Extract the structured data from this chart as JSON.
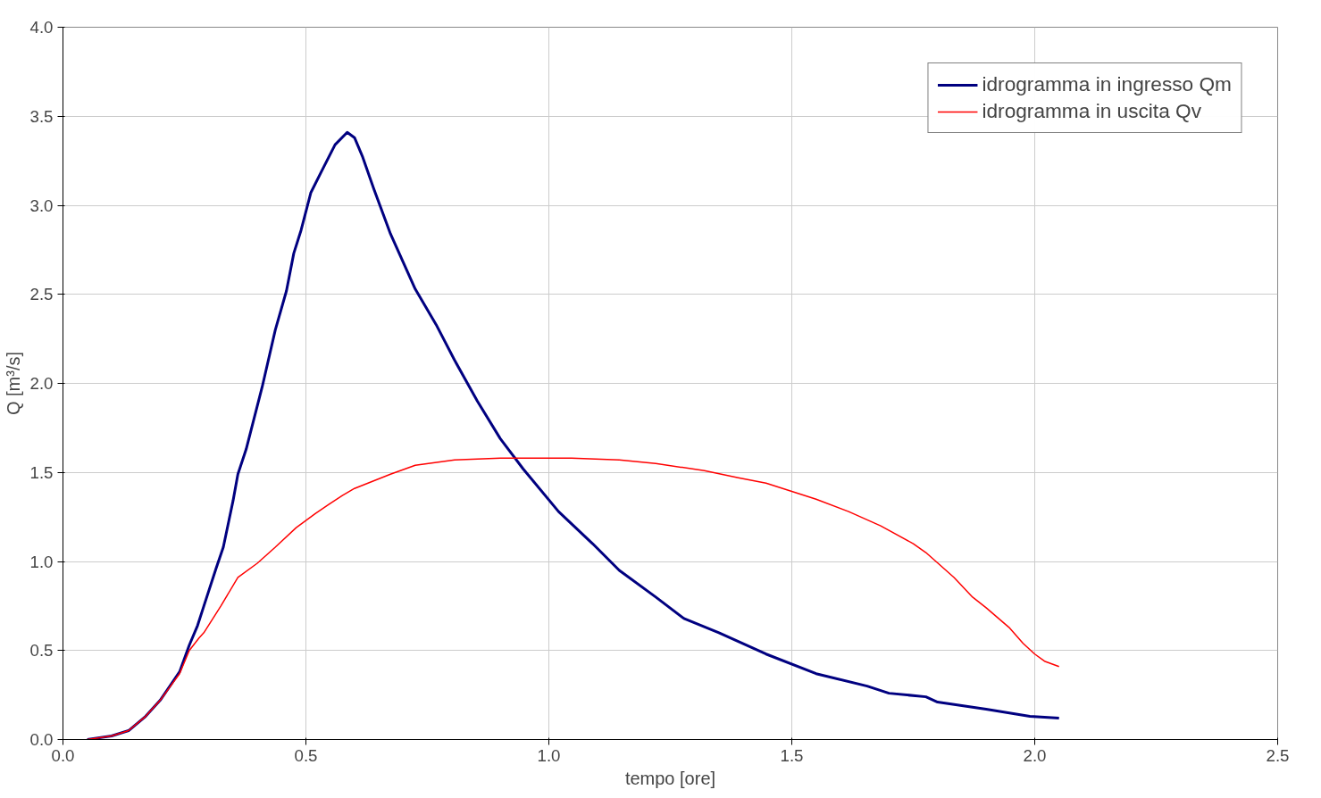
{
  "chart_data": {
    "type": "line",
    "xlabel": "tempo [ore]",
    "ylabel": "Q [m³/s]",
    "xlim": [
      0,
      2.5
    ],
    "ylim": [
      0,
      4
    ],
    "xticks": [
      {
        "value": 0,
        "label": "0.0"
      },
      {
        "value": 0.5,
        "label": "0.5"
      },
      {
        "value": 1,
        "label": "1.0"
      },
      {
        "value": 1.5,
        "label": "1.5"
      },
      {
        "value": 2,
        "label": "2.0"
      },
      {
        "value": 2.5,
        "label": "2.5"
      }
    ],
    "yticks": [
      {
        "value": 0,
        "label": "0.0"
      },
      {
        "value": 0.5,
        "label": "0.5"
      },
      {
        "value": 1,
        "label": "1.0"
      },
      {
        "value": 1.5,
        "label": "1.5"
      },
      {
        "value": 2,
        "label": "2.0"
      },
      {
        "value": 2.5,
        "label": "2.5"
      },
      {
        "value": 3,
        "label": "3.0"
      },
      {
        "value": 3.5,
        "label": "3.5"
      },
      {
        "value": 4,
        "label": "4.0"
      }
    ],
    "grid": true,
    "legend": "top right",
    "marker": "none",
    "line_style": "solid",
    "series": [
      {
        "name": "idrogramma in ingresso Qm",
        "color": "#000080",
        "x": [
          0.05,
          0.1,
          0.135,
          0.17,
          0.2,
          0.24,
          0.26,
          0.277,
          0.29,
          0.315,
          0.33,
          0.35,
          0.36,
          0.377,
          0.41,
          0.437,
          0.46,
          0.475,
          0.49,
          0.51,
          0.532,
          0.56,
          0.585,
          0.6,
          0.617,
          0.64,
          0.674,
          0.725,
          0.768,
          0.806,
          0.853,
          0.9,
          0.947,
          1.02,
          1.09,
          1.145,
          1.22,
          1.278,
          1.35,
          1.447,
          1.55,
          1.655,
          1.7,
          1.776,
          1.8,
          1.9,
          1.99,
          2.05
        ],
        "values": [
          0,
          0.02,
          0.05,
          0.13,
          0.22,
          0.38,
          0.53,
          0.64,
          0.75,
          0.96,
          1.08,
          1.34,
          1.49,
          1.63,
          1.98,
          2.3,
          2.52,
          2.73,
          2.86,
          3.07,
          3.19,
          3.34,
          3.41,
          3.38,
          3.27,
          3.09,
          2.84,
          2.53,
          2.33,
          2.13,
          1.9,
          1.69,
          1.52,
          1.28,
          1.1,
          0.95,
          0.8,
          0.68,
          0.6,
          0.48,
          0.37,
          0.3,
          0.26,
          0.24,
          0.21,
          0.17,
          0.13,
          0.12
        ]
      },
      {
        "name": "idrogramma in uscita Qv",
        "color": "#ff0000",
        "x": [
          0.05,
          0.1,
          0.135,
          0.17,
          0.2,
          0.24,
          0.26,
          0.28,
          0.29,
          0.325,
          0.36,
          0.4,
          0.437,
          0.48,
          0.52,
          0.547,
          0.575,
          0.6,
          0.674,
          0.725,
          0.806,
          0.9,
          1.047,
          1.145,
          1.22,
          1.32,
          1.39,
          1.447,
          1.55,
          1.617,
          1.683,
          1.75,
          1.776,
          1.834,
          1.872,
          1.9,
          1.947,
          1.976,
          2.0,
          2.02,
          2.05
        ],
        "values": [
          0,
          0.02,
          0.05,
          0.13,
          0.22,
          0.37,
          0.5,
          0.57,
          0.6,
          0.75,
          0.91,
          0.99,
          1.08,
          1.19,
          1.27,
          1.32,
          1.37,
          1.41,
          1.49,
          1.54,
          1.57,
          1.58,
          1.58,
          1.57,
          1.55,
          1.51,
          1.47,
          1.44,
          1.35,
          1.28,
          1.2,
          1.1,
          1.05,
          0.91,
          0.8,
          0.74,
          0.63,
          0.54,
          0.48,
          0.44,
          0.41
        ]
      }
    ]
  }
}
